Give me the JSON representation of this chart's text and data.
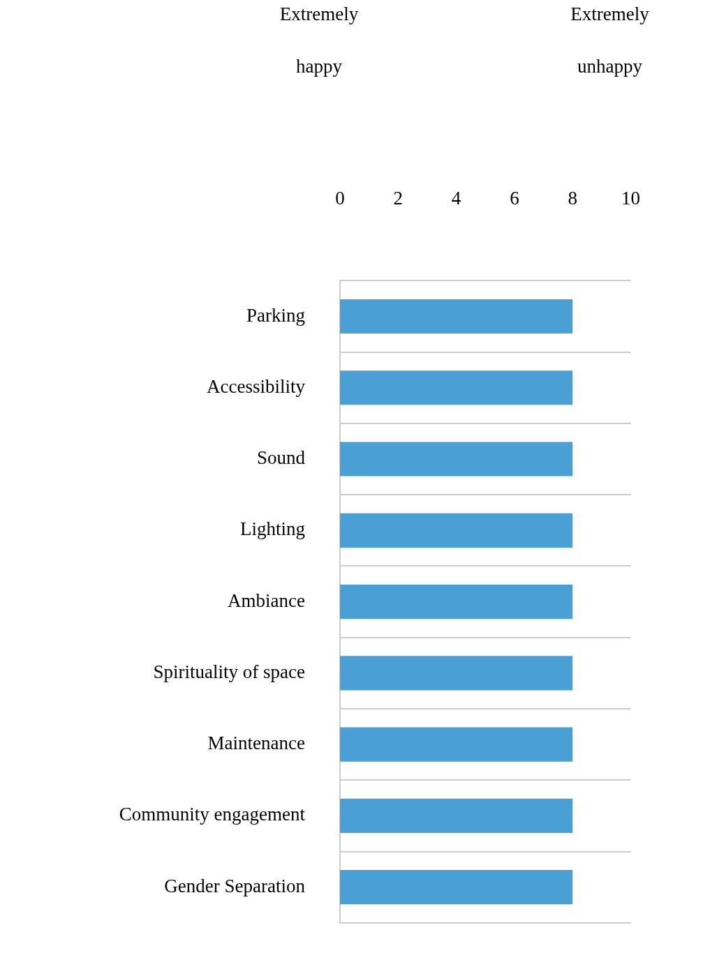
{
  "chart_data": {
    "type": "bar",
    "orientation": "horizontal",
    "categories": [
      "Parking",
      "Accessibility",
      "Sound",
      "Lighting",
      "Ambiance",
      "Spirituality of space",
      "Maintenance",
      "Community engagement",
      "Gender Separation"
    ],
    "values": [
      8,
      8,
      8,
      8,
      8,
      8,
      8,
      8,
      8
    ],
    "color": "#4a9fd4",
    "xlim": [
      0,
      10
    ],
    "xticks": [
      0,
      2,
      4,
      6,
      8,
      10
    ],
    "grid": "y",
    "annotations": [
      "Extremely happy",
      "Extremely unhappy"
    ]
  }
}
